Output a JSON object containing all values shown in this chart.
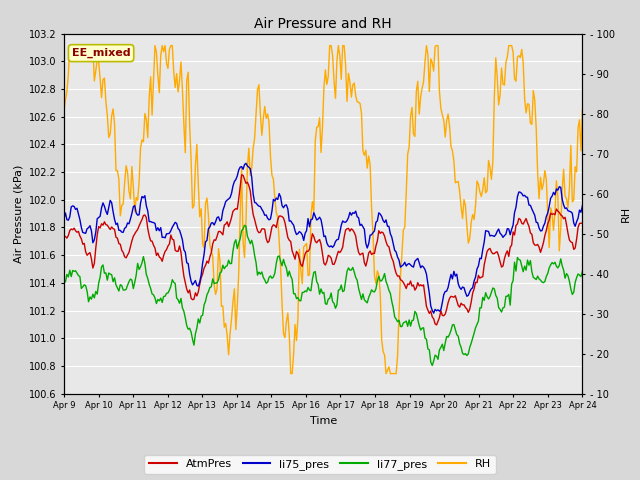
{
  "title": "Air Pressure and RH",
  "xlabel": "Time",
  "ylabel_left": "Air Pressure (kPa)",
  "ylabel_right": "RH",
  "ylim_left": [
    100.6,
    103.2
  ],
  "ylim_right": [
    10,
    100
  ],
  "yticks_left": [
    100.6,
    100.8,
    101.0,
    101.2,
    101.4,
    101.6,
    101.8,
    102.0,
    102.2,
    102.4,
    102.6,
    102.8,
    103.0,
    103.2
  ],
  "yticks_right": [
    10,
    20,
    30,
    40,
    50,
    60,
    70,
    80,
    90,
    100
  ],
  "xtick_labels": [
    "Apr 9",
    "Apr 10",
    "Apr 11",
    "Apr 12",
    "Apr 13",
    "Apr 14",
    "Apr 15",
    "Apr 16",
    "Apr 17",
    "Apr 18",
    "Apr 19",
    "Apr 20",
    "Apr 21",
    "Apr 22",
    "Apr 23",
    "Apr 24"
  ],
  "annotation_text": "EE_mixed",
  "annotation_bg": "#ffffcc",
  "annotation_border": "#bbbb00",
  "annotation_color": "#8b0000",
  "colors": {
    "AtmPres": "#cc0000",
    "li75_pres": "#0000cc",
    "li77_pres": "#00aa00",
    "RH": "#ffaa00"
  },
  "legend_labels": [
    "AtmPres",
    "li75_pres",
    "li77_pres",
    "RH"
  ],
  "bg_color": "#d8d8d8",
  "plot_bg": "#e8e8e8",
  "grid_color": "#ffffff",
  "linewidth": 1.0,
  "title_fontsize": 10,
  "label_fontsize": 8,
  "tick_fontsize": 7,
  "legend_fontsize": 8
}
